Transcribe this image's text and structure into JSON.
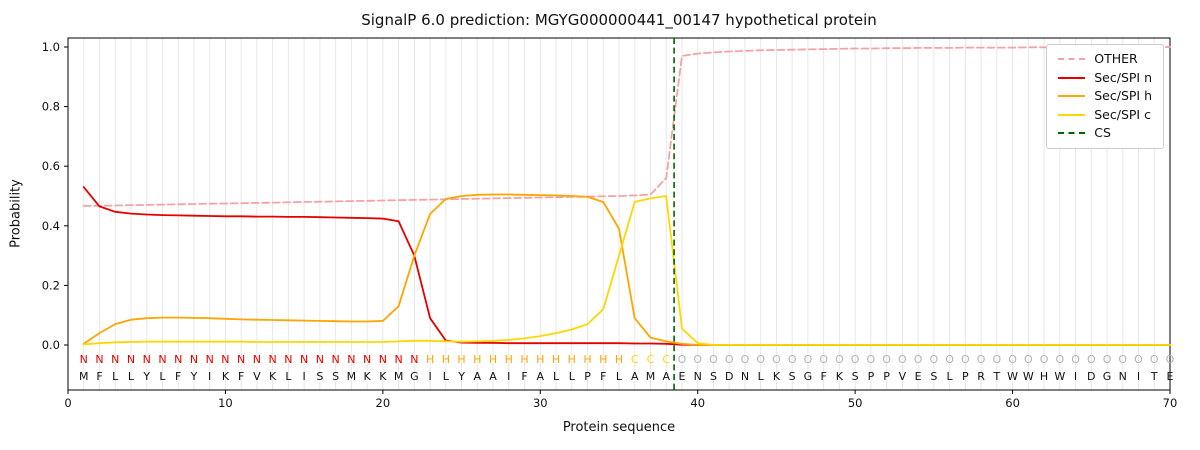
{
  "chart_data": {
    "type": "line",
    "title": "SignalP 6.0 prediction: MGYG000000441_00147 hypothetical protein",
    "xlabel": "Protein sequence",
    "ylabel": "Probability",
    "xlim": [
      0,
      70
    ],
    "ylim": [
      -0.17,
      1.05
    ],
    "x_ticks": [
      0,
      10,
      20,
      30,
      40,
      50,
      60,
      70
    ],
    "y_ticks": [
      0.0,
      0.2,
      0.4,
      0.6,
      0.8,
      1.0
    ],
    "grid": "vertical-per-residue",
    "legend_position": "upper right",
    "x": [
      1,
      2,
      3,
      4,
      5,
      6,
      7,
      8,
      9,
      10,
      11,
      12,
      13,
      14,
      15,
      16,
      17,
      18,
      19,
      20,
      21,
      22,
      23,
      24,
      25,
      26,
      27,
      28,
      29,
      30,
      31,
      32,
      33,
      34,
      35,
      36,
      37,
      38,
      39,
      40,
      41,
      42,
      43,
      44,
      45,
      46,
      47,
      48,
      49,
      50,
      51,
      52,
      53,
      54,
      55,
      56,
      57,
      58,
      59,
      60,
      61,
      62,
      63,
      64,
      65,
      66,
      67,
      68,
      69,
      70
    ],
    "series": [
      {
        "name": "OTHER",
        "color": "#f4a3a3",
        "dash": true,
        "values": [
          0.467,
          0.467,
          0.468,
          0.469,
          0.47,
          0.471,
          0.472,
          0.473,
          0.474,
          0.475,
          0.476,
          0.477,
          0.478,
          0.479,
          0.48,
          0.481,
          0.482,
          0.483,
          0.484,
          0.485,
          0.486,
          0.487,
          0.488,
          0.489,
          0.49,
          0.491,
          0.492,
          0.493,
          0.494,
          0.495,
          0.496,
          0.497,
          0.498,
          0.499,
          0.5,
          0.502,
          0.505,
          0.56,
          0.97,
          0.978,
          0.982,
          0.985,
          0.987,
          0.989,
          0.99,
          0.991,
          0.992,
          0.993,
          0.994,
          0.995,
          0.995,
          0.996,
          0.996,
          0.997,
          0.997,
          0.997,
          0.998,
          0.998,
          0.998,
          0.998,
          0.999,
          0.999,
          0.999,
          0.999,
          0.999,
          0.999,
          0.999,
          0.999,
          0.999,
          1.0
        ]
      },
      {
        "name": "Sec/SPI n",
        "color": "#e50000",
        "dash": false,
        "values": [
          0.53,
          0.465,
          0.447,
          0.441,
          0.438,
          0.436,
          0.435,
          0.434,
          0.433,
          0.432,
          0.432,
          0.431,
          0.431,
          0.43,
          0.43,
          0.429,
          0.428,
          0.427,
          0.426,
          0.424,
          0.415,
          0.3,
          0.09,
          0.015,
          0.008,
          0.007,
          0.007,
          0.006,
          0.006,
          0.006,
          0.006,
          0.006,
          0.006,
          0.006,
          0.006,
          0.005,
          0.005,
          0.004,
          0.001,
          0.0,
          0.0,
          0.0,
          0.0,
          0.0,
          0.0,
          0.0,
          0.0,
          0.0,
          0.0,
          0.0,
          0.0,
          0.0,
          0.0,
          0.0,
          0.0,
          0.0,
          0.0,
          0.0,
          0.0,
          0.0,
          0.0,
          0.0,
          0.0,
          0.0,
          0.0,
          0.0,
          0.0,
          0.0,
          0.0,
          0.0
        ]
      },
      {
        "name": "Sec/SPI h",
        "color": "#ffa500",
        "dash": false,
        "values": [
          0.004,
          0.04,
          0.07,
          0.085,
          0.09,
          0.092,
          0.092,
          0.091,
          0.09,
          0.088,
          0.086,
          0.085,
          0.084,
          0.083,
          0.082,
          0.081,
          0.08,
          0.079,
          0.079,
          0.081,
          0.13,
          0.3,
          0.44,
          0.49,
          0.5,
          0.504,
          0.505,
          0.505,
          0.504,
          0.503,
          0.502,
          0.5,
          0.497,
          0.48,
          0.39,
          0.09,
          0.025,
          0.012,
          0.004,
          0.0,
          0.0,
          0.0,
          0.0,
          0.0,
          0.0,
          0.0,
          0.0,
          0.0,
          0.0,
          0.0,
          0.0,
          0.0,
          0.0,
          0.0,
          0.0,
          0.0,
          0.0,
          0.0,
          0.0,
          0.0,
          0.0,
          0.0,
          0.0,
          0.0,
          0.0,
          0.0,
          0.0,
          0.0,
          0.0,
          0.0
        ]
      },
      {
        "name": "Sec/SPI c",
        "color": "#ffd700",
        "dash": false,
        "values": [
          0.002,
          0.006,
          0.009,
          0.01,
          0.011,
          0.011,
          0.011,
          0.011,
          0.011,
          0.011,
          0.011,
          0.01,
          0.01,
          0.01,
          0.01,
          0.01,
          0.01,
          0.01,
          0.01,
          0.01,
          0.012,
          0.014,
          0.014,
          0.012,
          0.011,
          0.012,
          0.014,
          0.017,
          0.022,
          0.03,
          0.04,
          0.052,
          0.07,
          0.12,
          0.3,
          0.48,
          0.492,
          0.5,
          0.055,
          0.006,
          0.0,
          0.0,
          0.0,
          0.0,
          0.0,
          0.0,
          0.0,
          0.0,
          0.0,
          0.0,
          0.0,
          0.0,
          0.0,
          0.0,
          0.0,
          0.0,
          0.0,
          0.0,
          0.0,
          0.0,
          0.0,
          0.0,
          0.0,
          0.0,
          0.0,
          0.0,
          0.0,
          0.0,
          0.0,
          0.0
        ]
      }
    ],
    "cs_marker": {
      "label": "CS",
      "x": 38.5,
      "color": "#006400",
      "dash": true
    },
    "legend": [
      {
        "label": "OTHER",
        "color": "#f4a3a3",
        "dash": true
      },
      {
        "label": "Sec/SPI n",
        "color": "#e50000",
        "dash": false
      },
      {
        "label": "Sec/SPI h",
        "color": "#ffa500",
        "dash": false
      },
      {
        "label": "Sec/SPI c",
        "color": "#ffd700",
        "dash": false
      },
      {
        "label": "CS",
        "color": "#006400",
        "dash": true
      }
    ],
    "sequence": "MFLLYLFYIKFVKLISSMKKMGILYAAIFALLPFLAMAENSDNLKSGFKSPPVESLPRTWWHWIDGNITE",
    "regions": "NNNNNNNNNNNNNNNNNNNNNNHHHHHHHHHHHHHCCCOOOOOOOOOOOOOOOOOOOOOOOOOOOOOOOO",
    "region_colors": {
      "N": "#e50000",
      "H": "#ffa500",
      "C": "#ffd700",
      "O": "#b3b3b3"
    }
  }
}
